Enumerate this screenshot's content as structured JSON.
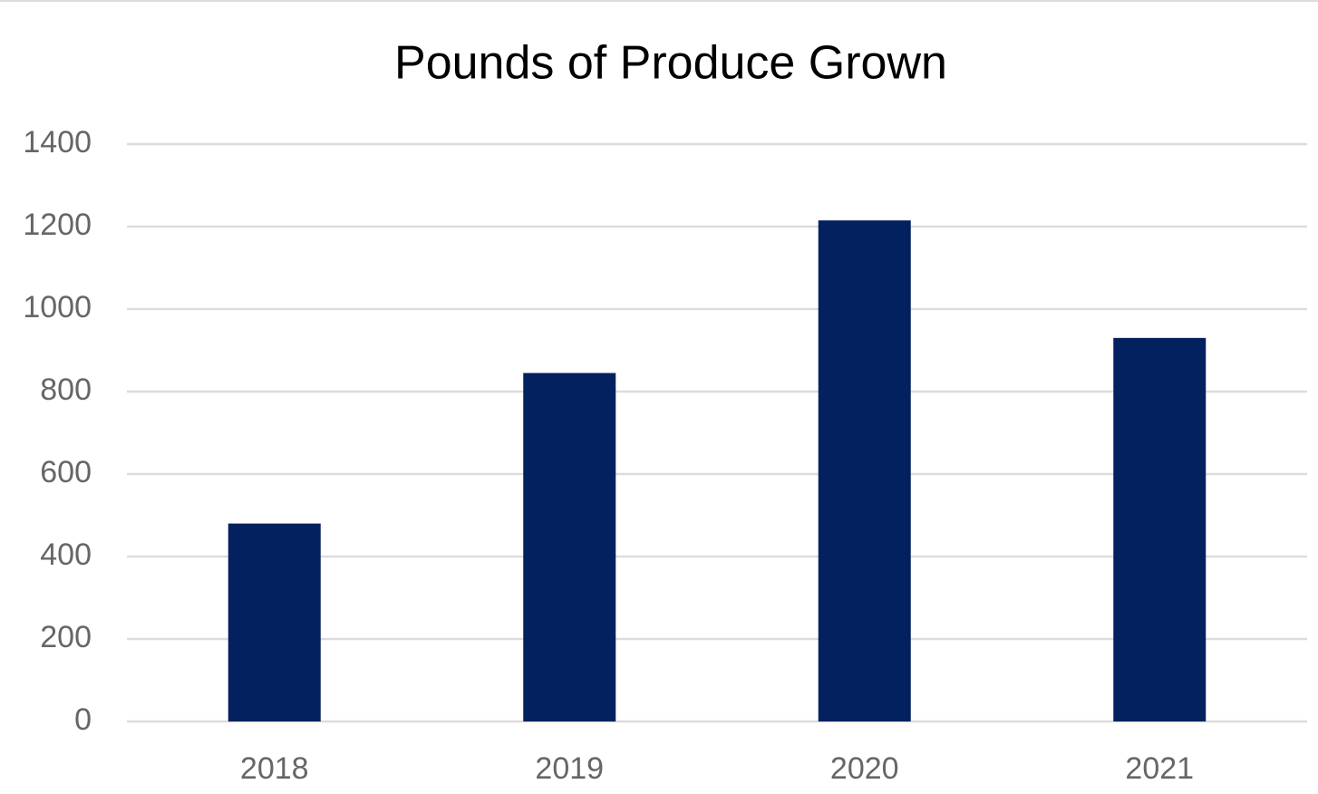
{
  "chart_data": {
    "type": "bar",
    "title": "Pounds of Produce Grown",
    "categories": [
      "2018",
      "2019",
      "2020",
      "2021"
    ],
    "values": [
      480,
      845,
      1215,
      930
    ],
    "color": "#03215e",
    "ylim": [
      0,
      1400
    ],
    "yticks": [
      0,
      200,
      400,
      600,
      800,
      1000,
      1200,
      1400
    ],
    "grid": true
  }
}
